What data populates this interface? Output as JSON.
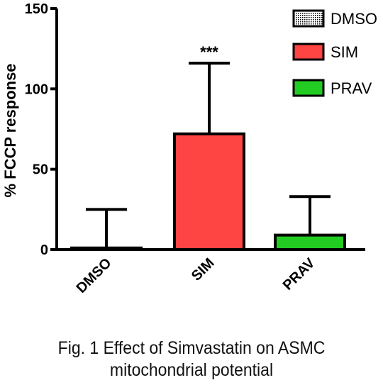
{
  "chart_data": {
    "type": "bar",
    "ylabel": "% FCCP response",
    "ylim": [
      0,
      150
    ],
    "yticks": [
      0,
      50,
      100,
      150
    ],
    "categories": [
      "DMSO",
      "SIM",
      "PRAV"
    ],
    "values": [
      1,
      72,
      9
    ],
    "error_upper": [
      25,
      116,
      33
    ],
    "annotations": [
      {
        "category": "SIM",
        "text": "***"
      }
    ],
    "legend": {
      "position": "top-right",
      "entries": [
        "DMSO",
        "SIM",
        "PRAV"
      ]
    },
    "colors": {
      "DMSO": "#ffffff",
      "SIM": "#ff4444",
      "PRAV": "#22cc22",
      "axis": "#000000"
    }
  },
  "caption": {
    "line1": "Fig. 1 Effect of Simvastatin on ASMC",
    "line2": "mitochondrial potential"
  }
}
